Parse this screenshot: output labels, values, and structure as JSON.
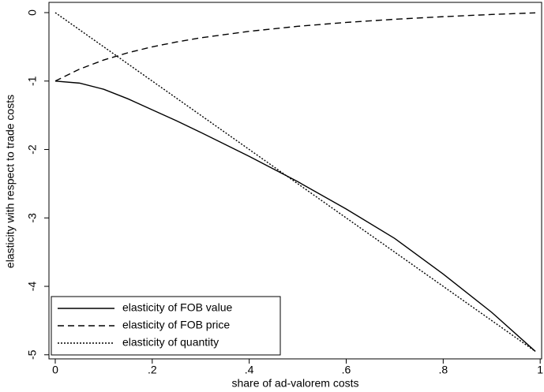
{
  "chart_data": {
    "type": "line",
    "x_label": "share of ad-valorem costs",
    "y_label": "elasticity with respect to  trade costs",
    "x": [
      0,
      0.05,
      0.1,
      0.15,
      0.2,
      0.25,
      0.3,
      0.4,
      0.5,
      0.6,
      0.7,
      0.8,
      0.9,
      0.99
    ],
    "series": [
      {
        "name": "elasticity of FOB value",
        "color": "#000000",
        "dash": "solid",
        "values": [
          -1,
          -1.03,
          -1.12,
          -1.26,
          -1.42,
          -1.58,
          -1.75,
          -2.1,
          -2.47,
          -2.87,
          -3.3,
          -3.82,
          -4.38,
          -4.95
        ]
      },
      {
        "name": "elasticity of FOB price",
        "color": "#000000",
        "dash": "dashed",
        "values": [
          -1,
          -0.826,
          -0.692,
          -0.586,
          -0.5,
          -0.429,
          -0.368,
          -0.273,
          -0.2,
          -0.143,
          -0.097,
          -0.059,
          -0.027,
          -0.003
        ]
      },
      {
        "name": "elasticity of quantity",
        "color": "#000000",
        "dash": "dotted",
        "values": [
          0,
          -0.25,
          -0.5,
          -0.75,
          -1,
          -1.25,
          -1.5,
          -2,
          -2.5,
          -3,
          -3.5,
          -4,
          -4.5,
          -4.95
        ]
      }
    ],
    "xlim": [
      -0.013,
      1.003
    ],
    "ylim": [
      -5.06,
      0.15
    ],
    "xticks": [
      0,
      {
        "value": 0.2,
        "label": ".2"
      },
      {
        "value": 0.4,
        "label": ".4"
      },
      {
        "value": 0.6,
        "label": ".6"
      },
      {
        "value": 0.8,
        "label": ".8"
      },
      1
    ],
    "yticks": [
      0,
      -1,
      -2,
      -3,
      -4,
      -5
    ],
    "grid": false,
    "legend": "lower-left"
  }
}
